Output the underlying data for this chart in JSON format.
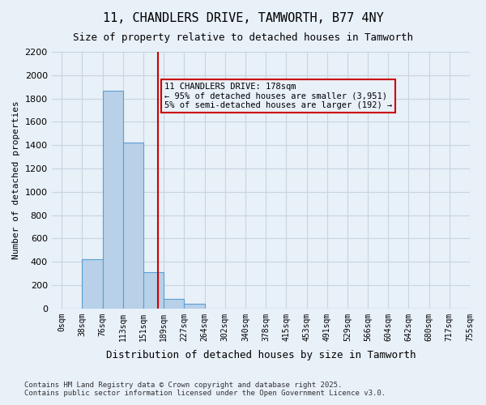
{
  "title": "11, CHANDLERS DRIVE, TAMWORTH, B77 4NY",
  "subtitle": "Size of property relative to detached houses in Tamworth",
  "xlabel": "Distribution of detached houses by size in Tamworth",
  "ylabel": "Number of detached properties",
  "footer_line1": "Contains HM Land Registry data © Crown copyright and database right 2025.",
  "footer_line2": "Contains public sector information licensed under the Open Government Licence v3.0.",
  "bin_labels": [
    "0sqm",
    "38sqm",
    "76sqm",
    "113sqm",
    "151sqm",
    "189sqm",
    "227sqm",
    "264sqm",
    "302sqm",
    "340sqm",
    "378sqm",
    "415sqm",
    "453sqm",
    "491sqm",
    "529sqm",
    "566sqm",
    "604sqm",
    "642sqm",
    "680sqm",
    "717sqm",
    "755sqm"
  ],
  "bar_values": [
    0,
    420,
    1870,
    1420,
    310,
    80,
    40,
    0,
    0,
    0,
    0,
    0,
    0,
    0,
    0,
    0,
    0,
    0,
    0,
    0,
    0
  ],
  "bar_color": "#b8d0e8",
  "bar_edge_color": "#5a9fd4",
  "grid_color": "#c8d4e0",
  "background_color": "#e8f0f8",
  "annotation_box_text": "11 CHANDLERS DRIVE: 178sqm\n← 95% of detached houses are smaller (3,951)\n5% of semi-detached houses are larger (192) →",
  "annotation_box_color": "#cc0000",
  "property_line_x": 4.0,
  "ylim": [
    0,
    2200
  ],
  "yticks": [
    0,
    200,
    400,
    600,
    800,
    1000,
    1200,
    1400,
    1600,
    1800,
    2000,
    2200
  ]
}
